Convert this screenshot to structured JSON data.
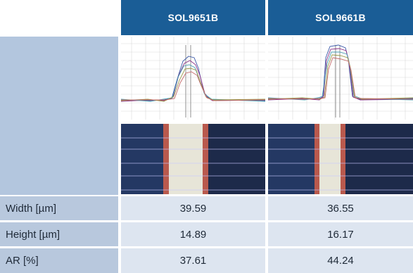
{
  "header": {
    "col1": "SOL9651B",
    "col2": "SOL9661B"
  },
  "rows": [
    {
      "label": "Width [µm]",
      "v1": "39.59",
      "v2": "36.55"
    },
    {
      "label": "Height [µm]",
      "v1": "14.89",
      "v2": "16.17"
    },
    {
      "label": "AR [%]",
      "v1": "37.61",
      "v2": "44.24"
    }
  ],
  "colors": {
    "header_bg": "#1a5d96",
    "label_bg": "#b8c8dd",
    "value_bg": "#dde5f0"
  }
}
